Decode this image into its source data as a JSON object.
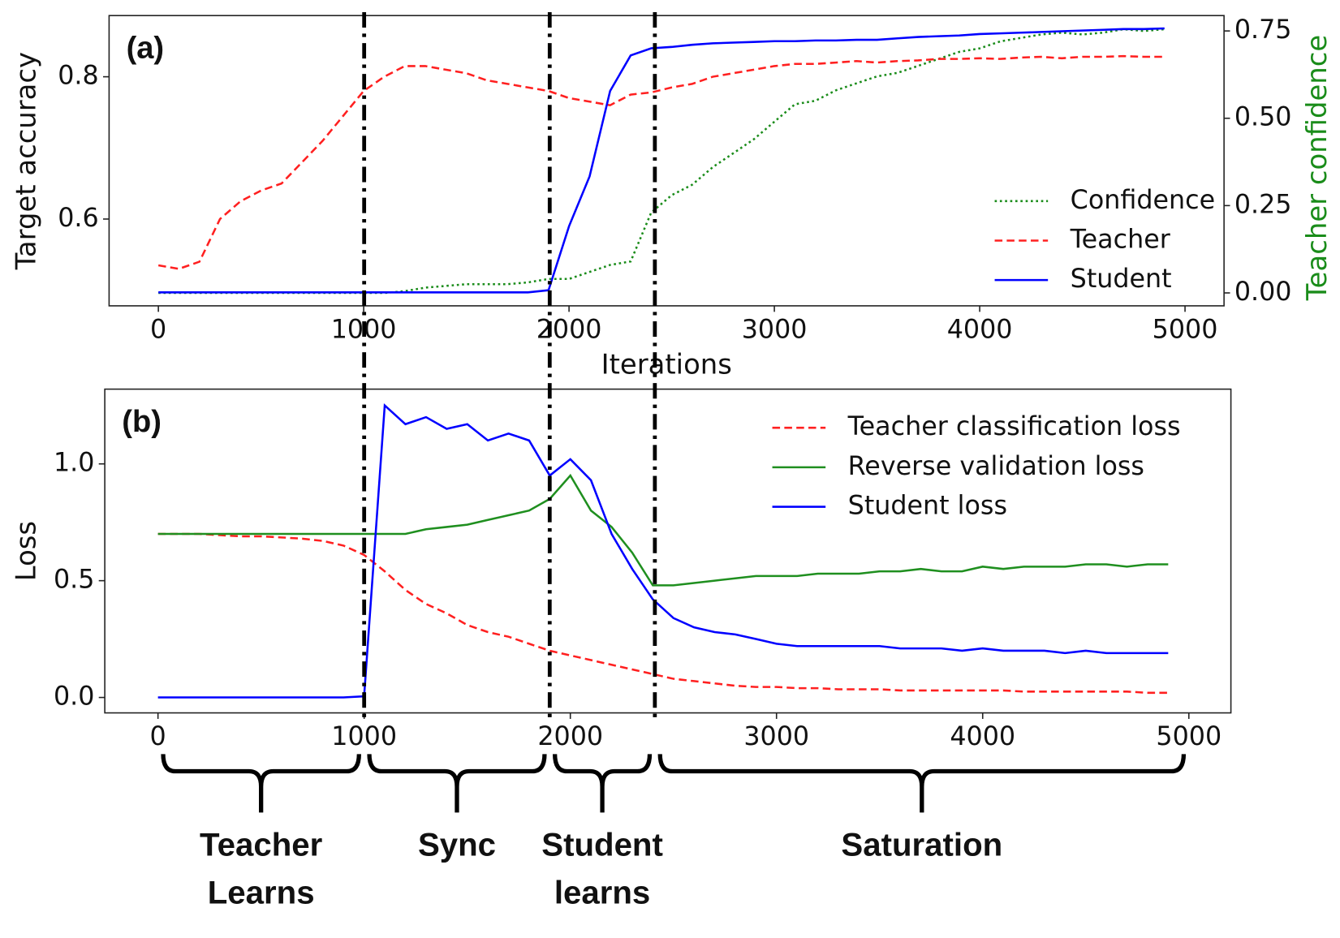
{
  "chart_data": [
    {
      "type": "line",
      "panel_label": "(a)",
      "xlabel": "Iterations",
      "ylabel": "Target accuracy",
      "y2label": "Teacher confidence",
      "xlim": [
        -240,
        5190
      ],
      "ylim": [
        0.478,
        0.886
      ],
      "y2lim": [
        -0.037,
        0.794
      ],
      "xticks": [
        0,
        1000,
        2000,
        3000,
        4000,
        5000
      ],
      "yticks": [
        0.6,
        0.8
      ],
      "y2ticks": [
        {
          "value": 0,
          "label": "0.00"
        },
        {
          "value": 0.25,
          "label": "0.25"
        },
        {
          "value": 0.5,
          "label": "0.50"
        },
        {
          "value": 0.75,
          "label": "0.75"
        }
      ],
      "legend": "lower right",
      "x": [
        0,
        100,
        200,
        300,
        400,
        500,
        600,
        700,
        800,
        900,
        1000,
        1100,
        1200,
        1300,
        1400,
        1500,
        1600,
        1700,
        1800,
        1900,
        2000,
        2100,
        2200,
        2300,
        2400,
        2500,
        2600,
        2700,
        2800,
        2900,
        3000,
        3100,
        3200,
        3300,
        3400,
        3500,
        3600,
        3700,
        3800,
        3900,
        4000,
        4100,
        4200,
        4300,
        4400,
        4500,
        4600,
        4700,
        4800,
        4900
      ],
      "series": [
        {
          "name": "Confidence",
          "color": "#1a8c1a",
          "style": "dotted",
          "axis": "y2",
          "values": [
            0,
            0,
            0,
            0,
            0,
            0,
            0,
            0,
            0,
            0,
            0,
            0,
            0.005,
            0.015,
            0.02,
            0.025,
            0.025,
            0.025,
            0.03,
            0.04,
            0.04,
            0.06,
            0.08,
            0.09,
            0.23,
            0.28,
            0.31,
            0.36,
            0.4,
            0.44,
            0.49,
            0.54,
            0.55,
            0.58,
            0.6,
            0.62,
            0.63,
            0.65,
            0.67,
            0.69,
            0.7,
            0.72,
            0.73,
            0.74,
            0.745,
            0.74,
            0.745,
            0.755,
            0.75,
            0.755
          ]
        },
        {
          "name": "Teacher",
          "color": "#ff2020",
          "style": "dashed",
          "values": [
            0.535,
            0.53,
            0.54,
            0.6,
            0.625,
            0.64,
            0.65,
            0.68,
            0.71,
            0.745,
            0.78,
            0.8,
            0.815,
            0.815,
            0.81,
            0.805,
            0.795,
            0.79,
            0.785,
            0.78,
            0.77,
            0.765,
            0.76,
            0.775,
            0.778,
            0.785,
            0.79,
            0.8,
            0.805,
            0.81,
            0.815,
            0.818,
            0.818,
            0.82,
            0.822,
            0.82,
            0.822,
            0.823,
            0.825,
            0.825,
            0.826,
            0.825,
            0.827,
            0.828,
            0.826,
            0.828,
            0.828,
            0.829,
            0.828,
            0.828
          ]
        },
        {
          "name": "Student",
          "color": "#0000ff",
          "style": "solid",
          "values": [
            0.497,
            0.497,
            0.497,
            0.497,
            0.497,
            0.497,
            0.497,
            0.497,
            0.497,
            0.497,
            0.497,
            0.497,
            0.497,
            0.497,
            0.497,
            0.497,
            0.497,
            0.497,
            0.497,
            0.5,
            0.59,
            0.66,
            0.78,
            0.83,
            0.84,
            0.842,
            0.845,
            0.847,
            0.848,
            0.849,
            0.85,
            0.85,
            0.851,
            0.851,
            0.852,
            0.852,
            0.854,
            0.856,
            0.857,
            0.858,
            0.86,
            0.861,
            0.862,
            0.863,
            0.864,
            0.865,
            0.866,
            0.867,
            0.867,
            0.868
          ]
        }
      ]
    },
    {
      "type": "line",
      "panel_label": "(b)",
      "ylabel": "Loss",
      "xlim": [
        -258,
        5204
      ],
      "ylim": [
        -0.066,
        1.32
      ],
      "xticks": [
        0,
        1000,
        2000,
        3000,
        4000,
        5000
      ],
      "yticks": [
        {
          "value": 0,
          "label": "0.0"
        },
        0.5,
        {
          "value": 1,
          "label": "1.0"
        }
      ],
      "legend": "upper right",
      "x": [
        0,
        100,
        200,
        300,
        400,
        500,
        600,
        700,
        800,
        900,
        1000,
        1100,
        1200,
        1300,
        1400,
        1500,
        1600,
        1700,
        1800,
        1900,
        2000,
        2100,
        2200,
        2300,
        2400,
        2500,
        2600,
        2700,
        2800,
        2900,
        3000,
        3100,
        3200,
        3300,
        3400,
        3500,
        3600,
        3700,
        3800,
        3900,
        4000,
        4100,
        4200,
        4300,
        4400,
        4500,
        4600,
        4700,
        4800,
        4900
      ],
      "series": [
        {
          "name": "Teacher classification loss",
          "color": "#ff2020",
          "style": "dashed",
          "values": [
            0.7,
            0.7,
            0.7,
            0.695,
            0.69,
            0.69,
            0.685,
            0.68,
            0.67,
            0.65,
            0.61,
            0.54,
            0.46,
            0.4,
            0.36,
            0.31,
            0.28,
            0.26,
            0.23,
            0.2,
            0.18,
            0.16,
            0.14,
            0.12,
            0.1,
            0.08,
            0.07,
            0.06,
            0.05,
            0.045,
            0.045,
            0.04,
            0.04,
            0.035,
            0.035,
            0.035,
            0.03,
            0.03,
            0.03,
            0.03,
            0.03,
            0.03,
            0.025,
            0.025,
            0.025,
            0.025,
            0.025,
            0.025,
            0.02,
            0.02
          ]
        },
        {
          "name": "Reverse validation loss",
          "color": "#1f8f1f",
          "style": "solid",
          "values": [
            0.7,
            0.7,
            0.7,
            0.7,
            0.7,
            0.7,
            0.7,
            0.7,
            0.7,
            0.7,
            0.7,
            0.7,
            0.7,
            0.72,
            0.73,
            0.74,
            0.76,
            0.78,
            0.8,
            0.85,
            0.95,
            0.8,
            0.73,
            0.62,
            0.48,
            0.48,
            0.49,
            0.5,
            0.51,
            0.52,
            0.52,
            0.52,
            0.53,
            0.53,
            0.53,
            0.54,
            0.54,
            0.55,
            0.54,
            0.54,
            0.56,
            0.55,
            0.56,
            0.56,
            0.56,
            0.57,
            0.57,
            0.56,
            0.57,
            0.57
          ]
        },
        {
          "name": "Student loss",
          "color": "#0000ff",
          "style": "solid",
          "values": [
            0,
            0,
            0,
            0,
            0,
            0,
            0,
            0,
            0,
            0,
            0.005,
            1.25,
            1.17,
            1.2,
            1.15,
            1.17,
            1.1,
            1.13,
            1.1,
            0.95,
            1.02,
            0.93,
            0.7,
            0.55,
            0.42,
            0.34,
            0.3,
            0.28,
            0.27,
            0.25,
            0.23,
            0.22,
            0.22,
            0.22,
            0.22,
            0.22,
            0.21,
            0.21,
            0.21,
            0.2,
            0.21,
            0.2,
            0.2,
            0.2,
            0.19,
            0.2,
            0.19,
            0.19,
            0.19,
            0.19
          ]
        }
      ]
    }
  ],
  "phases": [
    {
      "labels": [
        "Teacher",
        "Learns"
      ],
      "start": 0,
      "end": 1000
    },
    {
      "labels": [
        "Sync"
      ],
      "start": 1000,
      "end": 1900
    },
    {
      "labels": [
        "Student",
        "learns"
      ],
      "start": 1900,
      "end": 2410
    },
    {
      "labels": [
        "Saturation"
      ],
      "start": 2410,
      "end": 5000
    }
  ]
}
